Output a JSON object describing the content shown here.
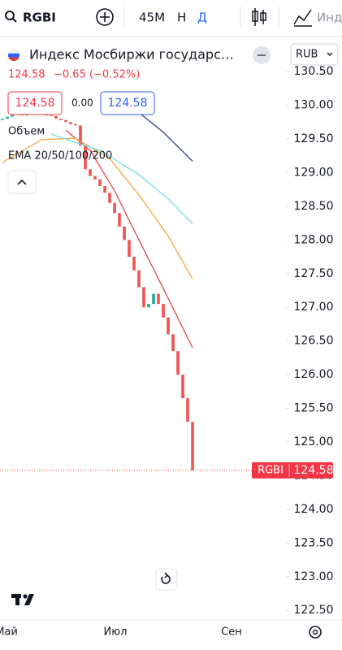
{
  "toolbar": {
    "symbol": "RGBI",
    "interval": "45M",
    "buttons": [
      "Н",
      "Д"
    ],
    "indicators": "Инд"
  },
  "legend": {
    "title": "Индекс Мосбиржи государс…",
    "currency": "RUB",
    "last": "124.58",
    "change": "−0.65 (−0.52%)",
    "sell": "124.58",
    "spread": "0.00",
    "buy": "124.58",
    "volume": "Объем",
    "ema": "EMA 20/50/100/200"
  },
  "chart_data": {
    "type": "candlestick",
    "up_color": "#26a69a",
    "down_color": "#ef5350",
    "open": [
      129.78,
      129.8,
      129.83,
      129.86,
      129.88,
      129.85,
      129.87,
      129.9,
      129.88,
      129.86,
      129.85,
      129.84,
      129.8,
      129.78,
      129.75,
      129.72,
      129.7,
      129.4,
      129.05,
      128.95,
      128.9,
      128.8,
      128.7,
      128.55,
      128.4,
      128.2,
      128.0,
      127.75,
      127.55,
      127.3,
      127.0,
      127.05,
      127.2,
      127.05,
      126.85,
      126.6,
      126.35,
      126.0,
      125.65,
      125.3
    ],
    "close": [
      129.8,
      129.83,
      129.86,
      129.88,
      129.85,
      129.87,
      129.9,
      129.88,
      129.86,
      129.85,
      129.84,
      129.8,
      129.78,
      129.75,
      129.72,
      129.7,
      129.4,
      129.05,
      128.95,
      128.9,
      128.8,
      128.7,
      128.55,
      128.4,
      128.2,
      128.0,
      127.75,
      127.55,
      127.3,
      127.0,
      127.05,
      127.2,
      127.05,
      126.85,
      126.6,
      126.35,
      126.0,
      125.65,
      125.3,
      124.58
    ],
    "lines": [
      {
        "color": "#e8474c",
        "x": [
          13,
          18,
          23,
          28,
          33,
          39
        ],
        "values": [
          129.63,
          129.33,
          128.73,
          128.0,
          127.28,
          126.4
        ]
      },
      {
        "color": "#f5a742",
        "x": [
          0,
          8,
          15,
          22,
          28,
          34,
          39
        ],
        "values": [
          129.15,
          129.49,
          129.51,
          129.21,
          128.67,
          128.06,
          127.42
        ]
      },
      {
        "color": "#6fe0ea",
        "x": [
          10,
          20,
          28,
          34,
          39
        ],
        "values": [
          129.57,
          129.33,
          128.97,
          128.61,
          128.24
        ]
      },
      {
        "color": "#3a3f9e",
        "x": [
          21,
          27,
          33,
          39
        ],
        "values": [
          130.17,
          129.95,
          129.6,
          129.17
        ]
      }
    ],
    "xlim": [
      -0.5,
      57.83
    ],
    "ylim": [
      122.37,
      130.96
    ],
    "yticks": [
      {
        "value": 130.5,
        "label": "130.50"
      },
      {
        "value": 130,
        "label": "130.00"
      },
      {
        "value": 129.5,
        "label": "129.50"
      },
      {
        "value": 129,
        "label": "129.00"
      },
      {
        "value": 128.5,
        "label": "128.50"
      },
      {
        "value": 128,
        "label": "128.00"
      },
      {
        "value": 127.5,
        "label": "127.50"
      },
      {
        "value": 127,
        "label": "127.00"
      },
      {
        "value": 126.5,
        "label": "126.50"
      },
      {
        "value": 126,
        "label": "126.00"
      },
      {
        "value": 125.5,
        "label": "125.50"
      },
      {
        "value": 125,
        "label": "125.00"
      },
      {
        "value": 124.5,
        "label": "124.50"
      },
      {
        "value": 124,
        "label": "124.00"
      },
      {
        "value": 123.5,
        "label": "123.50"
      },
      {
        "value": 123,
        "label": "123.00"
      },
      {
        "value": 122.5,
        "label": "122.50"
      }
    ],
    "x_labels": [
      "Май",
      "Июл",
      "Сен"
    ],
    "price_tag": "RGBI"
  }
}
